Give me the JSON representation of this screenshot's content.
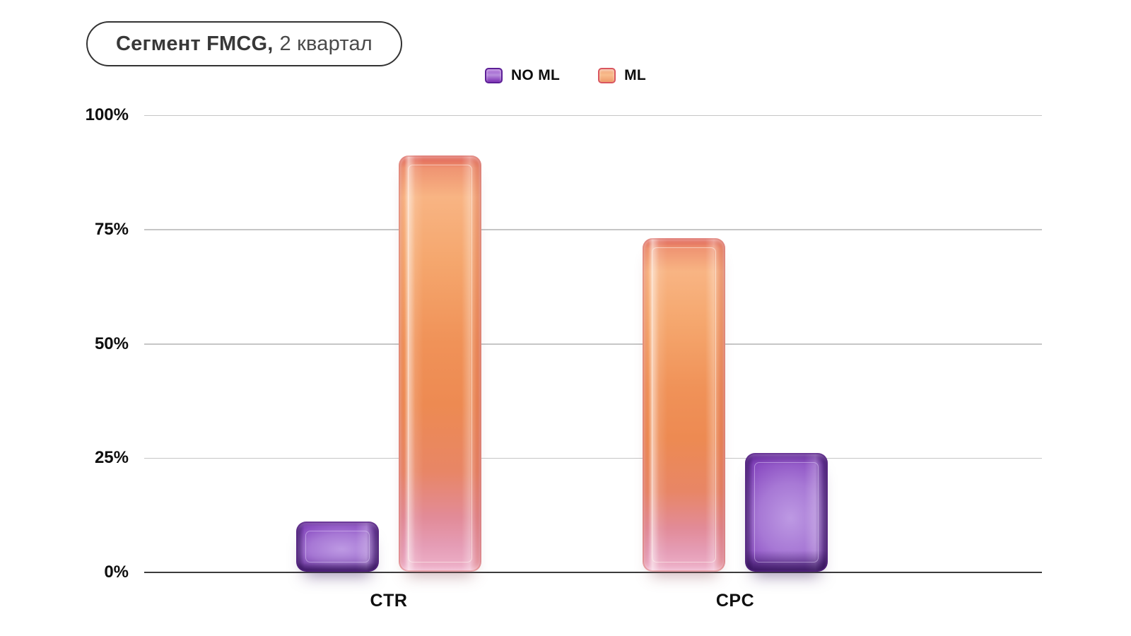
{
  "title": {
    "bold": "Сегмент FMCG,",
    "regular": "2 квартал"
  },
  "legend": {
    "items": [
      {
        "label": "NO ML",
        "key": "noml"
      },
      {
        "label": "ML",
        "key": "ml"
      }
    ]
  },
  "colors": {
    "no_ml_purple": "#8a3cc2",
    "ml_orange": "#f0905c",
    "gridline": "#c6c6c6",
    "axis_line": "#3c3c3c",
    "text": "#0f0f0f"
  },
  "chart_data": {
    "type": "bar",
    "title": "Сегмент FMCG, 2 квартал",
    "categories": [
      "CTR",
      "CPC"
    ],
    "series": [
      {
        "name": "NO ML",
        "key": "noml",
        "color": "#8a3cc2",
        "values": [
          11,
          26
        ]
      },
      {
        "name": "ML",
        "key": "ml",
        "color": "#f0905c",
        "values": [
          91,
          73
        ]
      }
    ],
    "groups": [
      {
        "label": "CTR",
        "bars": [
          {
            "series": "NO ML",
            "value": 11
          },
          {
            "series": "ML",
            "value": 91
          }
        ]
      },
      {
        "label": "CPC",
        "bars": [
          {
            "series": "ML",
            "value": 73
          },
          {
            "series": "NO ML",
            "value": 26
          }
        ]
      }
    ],
    "ylim": [
      0,
      100
    ],
    "yticks": [
      "0%",
      "25%",
      "50%",
      "75%",
      "100%"
    ],
    "unit": "%",
    "grid": true,
    "legend_position": "top"
  }
}
